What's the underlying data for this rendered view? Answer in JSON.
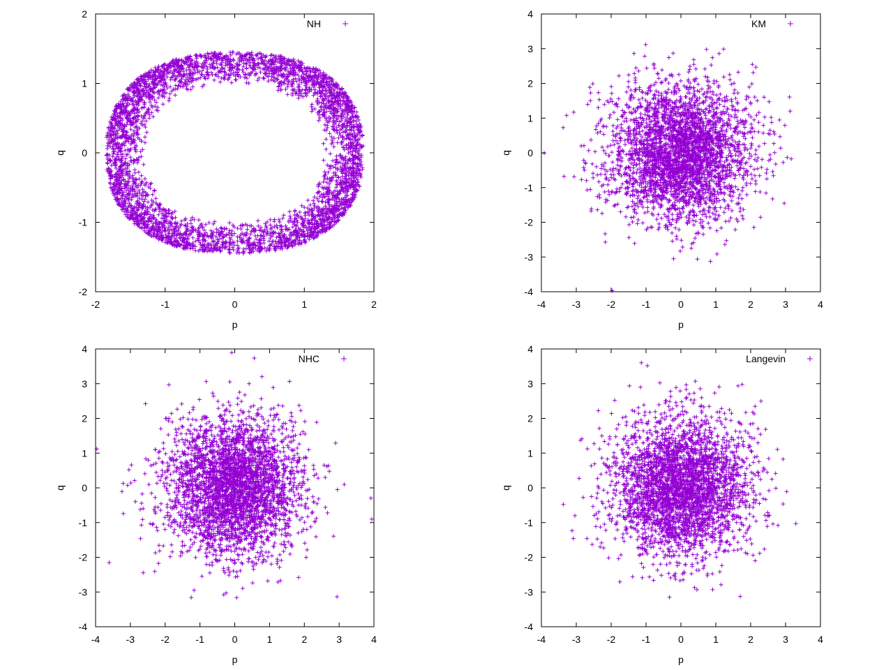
{
  "chart_data": [
    {
      "type": "scatter",
      "title": "",
      "xlabel": "p",
      "ylabel": "q",
      "xlim": [
        -2,
        2
      ],
      "ylim": [
        -2,
        2
      ],
      "xticks": [
        "-2",
        "-1",
        "0",
        "1",
        "2"
      ],
      "yticks": [
        "-2",
        "-1",
        "0",
        "1",
        "2"
      ],
      "grid": false,
      "legend_position": "top-right",
      "marker": "+",
      "color": "#9400d3",
      "series": [
        {
          "name": "NH",
          "distribution": "annulus",
          "inner_q_at_p0": 0.97,
          "outer_q_at_p0": 1.45,
          "inner_p_at_q0": 1.25,
          "outer_p_at_q0": 1.85
        }
      ]
    },
    {
      "type": "scatter",
      "title": "",
      "xlabel": "p",
      "ylabel": "q",
      "xlim": [
        -4,
        4
      ],
      "ylim": [
        -4,
        4
      ],
      "xticks": [
        "-4",
        "-3",
        "-2",
        "-1",
        "0",
        "1",
        "2",
        "3",
        "4"
      ],
      "yticks": [
        "-4",
        "-3",
        "-2",
        "-1",
        "0",
        "1",
        "2",
        "3",
        "4"
      ],
      "grid": false,
      "legend_position": "top-right",
      "marker": "+",
      "color": "#9400d3",
      "series": [
        {
          "name": "KM",
          "distribution": "gaussian",
          "mean": [
            0,
            0
          ],
          "std": [
            1,
            1
          ]
        }
      ]
    },
    {
      "type": "scatter",
      "title": "",
      "xlabel": "p",
      "ylabel": "q",
      "xlim": [
        -4,
        4
      ],
      "ylim": [
        -4,
        4
      ],
      "xticks": [
        "-4",
        "-3",
        "-2",
        "-1",
        "0",
        "1",
        "2",
        "3",
        "4"
      ],
      "yticks": [
        "-4",
        "-3",
        "-2",
        "-1",
        "0",
        "1",
        "2",
        "3",
        "4"
      ],
      "grid": false,
      "legend_position": "top-right",
      "marker": "+",
      "color": "#9400d3",
      "series": [
        {
          "name": "NHC",
          "distribution": "gaussian",
          "mean": [
            0,
            0
          ],
          "std": [
            1,
            1
          ]
        }
      ]
    },
    {
      "type": "scatter",
      "title": "",
      "xlabel": "p",
      "ylabel": "q",
      "xlim": [
        -4,
        4
      ],
      "ylim": [
        -4,
        4
      ],
      "xticks": [
        "-4",
        "-3",
        "-2",
        "-1",
        "0",
        "1",
        "2",
        "3",
        "4"
      ],
      "yticks": [
        "-4",
        "-3",
        "-2",
        "-1",
        "0",
        "1",
        "2",
        "3",
        "4"
      ],
      "grid": false,
      "legend_position": "top-right",
      "marker": "+",
      "color": "#9400d3",
      "series": [
        {
          "name": "Langevin",
          "distribution": "gaussian",
          "mean": [
            0,
            0
          ],
          "std": [
            1,
            1
          ]
        }
      ]
    }
  ]
}
